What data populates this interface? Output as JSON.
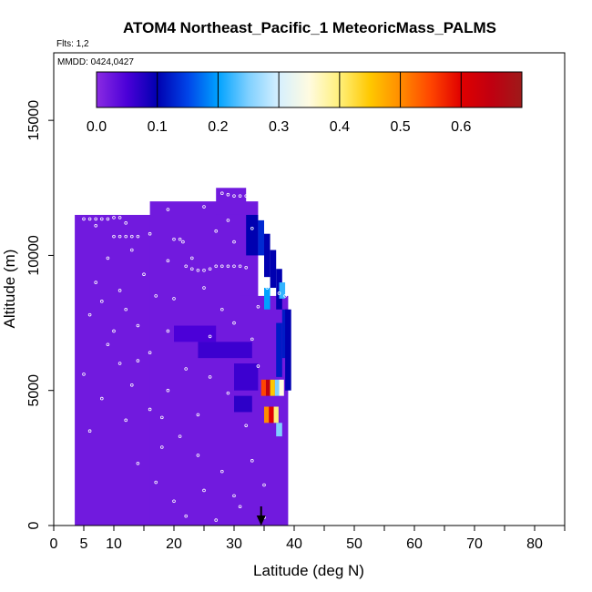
{
  "chart_data": {
    "type": "heatmap",
    "title": "ATOM4 Northeast_Pacific_1 MeteoricMass_PALMS",
    "flights_label": "Flts: 1,2",
    "dates_label": "MMDD: 0424,0427",
    "xlabel": "Latitude (deg N)",
    "ylabel": "Altitude (m)",
    "xlim": [
      0,
      85
    ],
    "ylim": [
      0,
      17500
    ],
    "x_ticks": [
      0,
      5,
      10,
      20,
      30,
      40,
      50,
      60,
      70,
      80
    ],
    "x_minor_ticks": [
      15,
      25,
      35,
      45,
      55,
      65,
      75,
      85
    ],
    "y_ticks": [
      0,
      5000,
      10000,
      15000
    ],
    "colorbar": {
      "range": [
        0,
        0.7
      ],
      "ticks": [
        0.0,
        0.1,
        0.2,
        0.3,
        0.4,
        0.5,
        0.6
      ],
      "tick_labels": [
        "0.0",
        "0.1",
        "0.2",
        "0.3",
        "0.4",
        "0.5",
        "0.6"
      ]
    },
    "colors": {
      "background_fill": "#7f2ff0",
      "marker": "#ffffff",
      "arrow": "#000000"
    },
    "arrow_latitude": 34.5,
    "cells": [
      {
        "lat": [
          3.5,
          16.5
        ],
        "alt": [
          0,
          11500
        ],
        "value": 0.02
      },
      {
        "lat": [
          16,
          34
        ],
        "alt": [
          0,
          12000
        ],
        "value": 0.02
      },
      {
        "lat": [
          27,
          32
        ],
        "alt": [
          11500,
          12500
        ],
        "value": 0.02
      },
      {
        "lat": [
          31,
          39
        ],
        "alt": [
          0,
          8500
        ],
        "value": 0.02
      },
      {
        "lat": [
          20,
          27
        ],
        "alt": [
          6800,
          7400
        ],
        "value": 0.05
      },
      {
        "lat": [
          24,
          33
        ],
        "alt": [
          6200,
          6800
        ],
        "value": 0.06
      },
      {
        "lat": [
          30,
          34
        ],
        "alt": [
          5000,
          6000
        ],
        "value": 0.06
      },
      {
        "lat": [
          30,
          33
        ],
        "alt": [
          4200,
          4800
        ],
        "value": 0.07
      },
      {
        "lat": [
          32,
          34
        ],
        "alt": [
          10000,
          11500
        ],
        "value": 0.1
      },
      {
        "lat": [
          34,
          35
        ],
        "alt": [
          10000,
          11300
        ],
        "value": 0.13
      },
      {
        "lat": [
          35,
          36
        ],
        "alt": [
          9200,
          10800
        ],
        "value": 0.1
      },
      {
        "lat": [
          36,
          37
        ],
        "alt": [
          8800,
          10200
        ],
        "value": 0.1
      },
      {
        "lat": [
          37,
          38
        ],
        "alt": [
          8000,
          9500
        ],
        "value": 0.1
      },
      {
        "lat": [
          38,
          39
        ],
        "alt": [
          6200,
          8000
        ],
        "value": 0.12
      },
      {
        "lat": [
          37,
          38
        ],
        "alt": [
          5500,
          7500
        ],
        "value": 0.12
      },
      {
        "lat": [
          38.5,
          39.5
        ],
        "alt": [
          5000,
          8000
        ],
        "value": 0.1
      },
      {
        "lat": [
          35,
          36
        ],
        "alt": [
          8000,
          8800
        ],
        "value": 0.2
      },
      {
        "lat": [
          37.5,
          38.5
        ],
        "alt": [
          8400,
          9000
        ],
        "value": 0.22
      },
      {
        "lat": [
          34.5,
          35.3
        ],
        "alt": [
          4800,
          5400
        ],
        "value": 0.55
      },
      {
        "lat": [
          35.3,
          36
        ],
        "alt": [
          4800,
          5400
        ],
        "value": 0.65
      },
      {
        "lat": [
          36,
          36.8
        ],
        "alt": [
          4800,
          5400
        ],
        "value": 0.45
      },
      {
        "lat": [
          36.8,
          37.5
        ],
        "alt": [
          4800,
          5400
        ],
        "value": 0.25
      },
      {
        "lat": [
          37.5,
          38.3
        ],
        "alt": [
          4800,
          5400
        ],
        "value": 0.35
      },
      {
        "lat": [
          35,
          35.8
        ],
        "alt": [
          3800,
          4400
        ],
        "value": 0.5
      },
      {
        "lat": [
          35.8,
          36.6
        ],
        "alt": [
          3800,
          4400
        ],
        "value": 0.6
      },
      {
        "lat": [
          36.6,
          37.4
        ],
        "alt": [
          3800,
          4400
        ],
        "value": 0.4
      },
      {
        "lat": [
          37,
          38
        ],
        "alt": [
          3300,
          3800
        ],
        "value": 0.25
      }
    ],
    "markers": [
      [
        5,
        11350
      ],
      [
        6,
        11350
      ],
      [
        7,
        11350
      ],
      [
        8,
        11350
      ],
      [
        9,
        11350
      ],
      [
        10,
        11400
      ],
      [
        11,
        11400
      ],
      [
        10,
        10700
      ],
      [
        11,
        10700
      ],
      [
        12,
        10700
      ],
      [
        13,
        10700
      ],
      [
        14,
        10700
      ],
      [
        20,
        10600
      ],
      [
        21,
        10600
      ],
      [
        21.5,
        10500
      ],
      [
        22,
        9600
      ],
      [
        23,
        9500
      ],
      [
        24,
        9450
      ],
      [
        25,
        9450
      ],
      [
        26,
        9500
      ],
      [
        27,
        9600
      ],
      [
        28,
        9600
      ],
      [
        29,
        9600
      ],
      [
        30,
        9600
      ],
      [
        31,
        9600
      ],
      [
        32,
        9550
      ],
      [
        28,
        12300
      ],
      [
        29,
        12250
      ],
      [
        30,
        12200
      ],
      [
        31,
        12200
      ],
      [
        32,
        12200
      ],
      [
        35.5,
        8800
      ],
      [
        36.5,
        8700
      ],
      [
        37.5,
        8600
      ],
      [
        38.5,
        8500
      ],
      [
        7,
        11100
      ],
      [
        12,
        11200
      ],
      [
        13,
        10200
      ],
      [
        16,
        10800
      ],
      [
        19,
        9800
      ],
      [
        9,
        9900
      ],
      [
        15,
        9300
      ],
      [
        7,
        9000
      ],
      [
        11,
        8700
      ],
      [
        17,
        8500
      ],
      [
        12,
        8000
      ],
      [
        6,
        7800
      ],
      [
        14,
        7400
      ],
      [
        19,
        7200
      ],
      [
        9,
        6700
      ],
      [
        16,
        6400
      ],
      [
        11,
        6000
      ],
      [
        5,
        5600
      ],
      [
        13,
        5200
      ],
      [
        19,
        5000
      ],
      [
        8,
        4700
      ],
      [
        16,
        4300
      ],
      [
        12,
        3900
      ],
      [
        6,
        3500
      ],
      [
        21,
        3300
      ],
      [
        18,
        2900
      ],
      [
        24,
        2600
      ],
      [
        14,
        2300
      ],
      [
        28,
        2000
      ],
      [
        17,
        1600
      ],
      [
        25,
        1300
      ],
      [
        20,
        900
      ],
      [
        31,
        700
      ],
      [
        22,
        350
      ],
      [
        27,
        200
      ],
      [
        30,
        1100
      ],
      [
        24,
        4100
      ],
      [
        29,
        4900
      ],
      [
        22,
        5800
      ],
      [
        26,
        7000
      ],
      [
        28,
        8000
      ],
      [
        25,
        8800
      ],
      [
        20,
        8400
      ],
      [
        29,
        11300
      ],
      [
        27,
        10900
      ],
      [
        30,
        10500
      ],
      [
        23,
        9900
      ],
      [
        33,
        11000
      ],
      [
        34,
        8100
      ],
      [
        30,
        7500
      ],
      [
        33,
        6900
      ],
      [
        34,
        5900
      ],
      [
        32,
        3700
      ],
      [
        33,
        2400
      ],
      [
        35,
        1500
      ],
      [
        35,
        300
      ],
      [
        19,
        11700
      ],
      [
        25,
        11800
      ],
      [
        10,
        7200
      ],
      [
        14,
        6100
      ],
      [
        8,
        8300
      ],
      [
        18,
        4000
      ],
      [
        26,
        5500
      ]
    ]
  }
}
